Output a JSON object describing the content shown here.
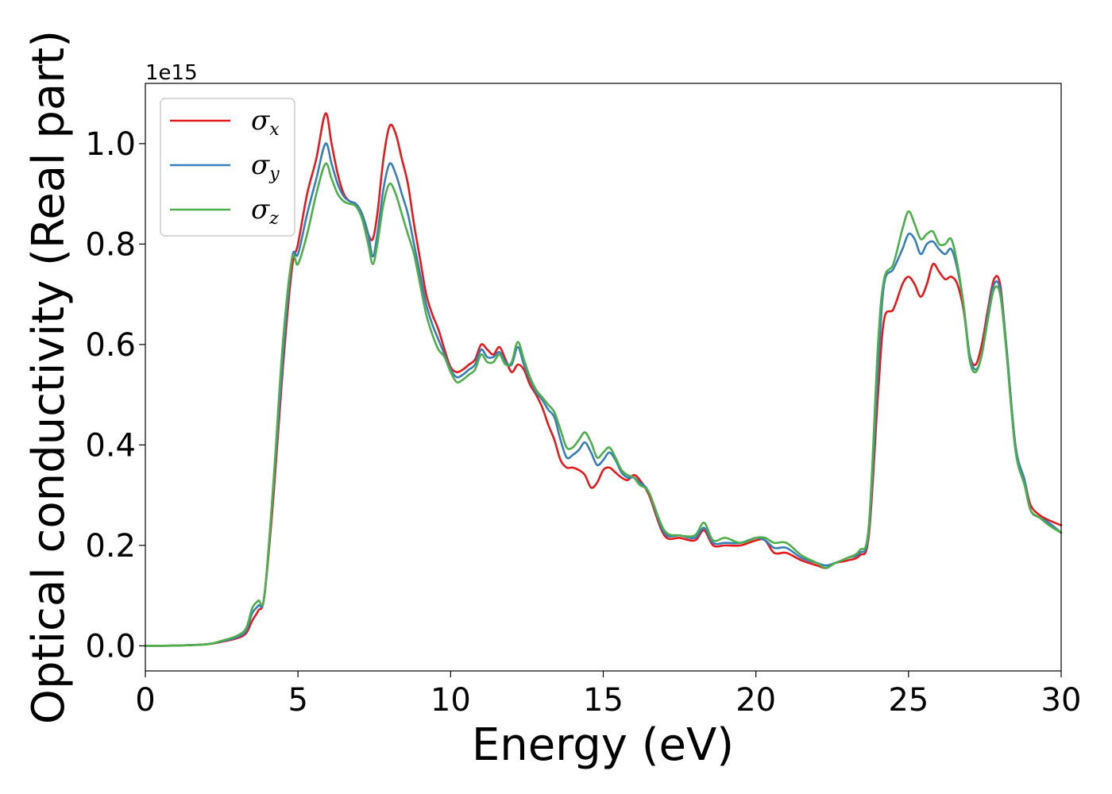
{
  "chart_data": {
    "type": "line",
    "title": "",
    "xlabel": "Energy (eV)",
    "ylabel": "Optical conductivity (Real part)",
    "y_offset_label": "1e15",
    "xlim": [
      0,
      30
    ],
    "ylim": [
      -0.05,
      1.12
    ],
    "xticks": [
      0,
      5,
      10,
      15,
      20,
      25,
      30
    ],
    "yticks": [
      0.0,
      0.2,
      0.4,
      0.6,
      0.8,
      1.0
    ],
    "ytick_labels": [
      "0.0",
      "0.2",
      "0.4",
      "0.6",
      "0.8",
      "1.0"
    ],
    "grid": false,
    "legend_position": "top-left",
    "series": [
      {
        "name": "σx",
        "symbol": "σ",
        "subscript": "x",
        "color": "#e41a1c",
        "x": [
          0,
          1,
          2,
          2.5,
          3,
          3.3,
          3.5,
          3.7,
          3.9,
          4.2,
          4.5,
          4.8,
          5.0,
          5.3,
          5.6,
          5.9,
          6.1,
          6.3,
          6.5,
          6.7,
          6.9,
          7.1,
          7.3,
          7.45,
          7.6,
          7.8,
          8.0,
          8.2,
          8.4,
          8.6,
          8.8,
          9.0,
          9.2,
          9.4,
          9.6,
          9.8,
          10.0,
          10.2,
          10.4,
          10.6,
          10.8,
          11.0,
          11.2,
          11.4,
          11.6,
          11.8,
          12.0,
          12.2,
          12.4,
          12.6,
          12.8,
          13.0,
          13.2,
          13.4,
          13.6,
          13.8,
          14.0,
          14.2,
          14.4,
          14.6,
          14.8,
          15.0,
          15.2,
          15.4,
          15.6,
          15.8,
          16.0,
          16.2,
          16.5,
          17.0,
          17.5,
          18.0,
          18.3,
          18.6,
          19.0,
          19.5,
          20.0,
          20.3,
          20.6,
          21.0,
          21.5,
          22.0,
          22.3,
          22.6,
          23.0,
          23.4,
          23.7,
          24.0,
          24.2,
          24.5,
          24.8,
          25.0,
          25.2,
          25.4,
          25.6,
          25.8,
          26.0,
          26.2,
          26.4,
          26.6,
          26.8,
          27.0,
          27.2,
          27.4,
          27.6,
          27.8,
          28.0,
          28.2,
          28.5,
          28.8,
          29.0,
          29.3,
          29.6,
          30.0
        ],
        "y": [
          0,
          0.0005,
          0.003,
          0.008,
          0.015,
          0.025,
          0.05,
          0.07,
          0.1,
          0.3,
          0.55,
          0.75,
          0.8,
          0.9,
          0.97,
          1.06,
          1.0,
          0.94,
          0.9,
          0.885,
          0.88,
          0.86,
          0.82,
          0.81,
          0.86,
          0.97,
          1.035,
          1.02,
          0.97,
          0.92,
          0.84,
          0.77,
          0.7,
          0.66,
          0.63,
          0.59,
          0.555,
          0.545,
          0.55,
          0.56,
          0.57,
          0.6,
          0.59,
          0.58,
          0.595,
          0.57,
          0.545,
          0.56,
          0.55,
          0.52,
          0.5,
          0.475,
          0.44,
          0.41,
          0.37,
          0.355,
          0.355,
          0.35,
          0.34,
          0.315,
          0.325,
          0.35,
          0.355,
          0.345,
          0.335,
          0.33,
          0.34,
          0.33,
          0.3,
          0.22,
          0.215,
          0.21,
          0.23,
          0.2,
          0.2,
          0.2,
          0.21,
          0.21,
          0.185,
          0.185,
          0.17,
          0.16,
          0.155,
          0.165,
          0.17,
          0.18,
          0.22,
          0.5,
          0.65,
          0.67,
          0.72,
          0.735,
          0.72,
          0.695,
          0.72,
          0.76,
          0.745,
          0.73,
          0.735,
          0.72,
          0.67,
          0.58,
          0.56,
          0.6,
          0.67,
          0.73,
          0.72,
          0.6,
          0.4,
          0.33,
          0.28,
          0.26,
          0.25,
          0.24
        ]
      },
      {
        "name": "σy",
        "symbol": "σ",
        "subscript": "y",
        "color": "#377eb8",
        "x": [
          0,
          1,
          2,
          2.5,
          3,
          3.3,
          3.5,
          3.7,
          3.9,
          4.2,
          4.5,
          4.8,
          5.0,
          5.3,
          5.6,
          5.9,
          6.1,
          6.3,
          6.5,
          6.7,
          6.9,
          7.1,
          7.3,
          7.45,
          7.6,
          7.8,
          8.0,
          8.2,
          8.4,
          8.6,
          8.8,
          9.0,
          9.2,
          9.4,
          9.6,
          9.8,
          10.0,
          10.2,
          10.4,
          10.6,
          10.8,
          11.0,
          11.2,
          11.4,
          11.6,
          11.8,
          12.0,
          12.2,
          12.4,
          12.6,
          12.8,
          13.0,
          13.2,
          13.4,
          13.6,
          13.8,
          14.0,
          14.2,
          14.4,
          14.6,
          14.8,
          15.0,
          15.2,
          15.4,
          15.6,
          15.8,
          16.0,
          16.2,
          16.5,
          17.0,
          17.5,
          18.0,
          18.3,
          18.6,
          19.0,
          19.5,
          20.0,
          20.3,
          20.6,
          21.0,
          21.5,
          22.0,
          22.3,
          22.6,
          23.0,
          23.4,
          23.7,
          24.0,
          24.2,
          24.5,
          24.8,
          25.0,
          25.2,
          25.4,
          25.6,
          25.8,
          26.0,
          26.2,
          26.4,
          26.6,
          26.8,
          27.0,
          27.2,
          27.4,
          27.6,
          27.8,
          28.0,
          28.2,
          28.5,
          28.8,
          29.0,
          29.3,
          29.6,
          30.0
        ],
        "y": [
          0,
          0.0005,
          0.003,
          0.009,
          0.017,
          0.03,
          0.065,
          0.08,
          0.1,
          0.32,
          0.57,
          0.77,
          0.78,
          0.86,
          0.93,
          1.0,
          0.96,
          0.92,
          0.895,
          0.885,
          0.88,
          0.86,
          0.82,
          0.775,
          0.82,
          0.91,
          0.96,
          0.94,
          0.9,
          0.86,
          0.8,
          0.74,
          0.68,
          0.64,
          0.61,
          0.58,
          0.55,
          0.535,
          0.54,
          0.55,
          0.56,
          0.59,
          0.575,
          0.575,
          0.585,
          0.565,
          0.56,
          0.595,
          0.56,
          0.53,
          0.505,
          0.49,
          0.47,
          0.455,
          0.41,
          0.375,
          0.38,
          0.39,
          0.405,
          0.385,
          0.36,
          0.37,
          0.385,
          0.37,
          0.345,
          0.335,
          0.335,
          0.325,
          0.305,
          0.225,
          0.22,
          0.215,
          0.235,
          0.205,
          0.205,
          0.205,
          0.215,
          0.21,
          0.195,
          0.195,
          0.175,
          0.165,
          0.16,
          0.165,
          0.175,
          0.185,
          0.23,
          0.55,
          0.72,
          0.75,
          0.79,
          0.82,
          0.81,
          0.78,
          0.8,
          0.805,
          0.79,
          0.78,
          0.79,
          0.75,
          0.68,
          0.58,
          0.55,
          0.58,
          0.66,
          0.72,
          0.71,
          0.6,
          0.4,
          0.33,
          0.27,
          0.255,
          0.245,
          0.225
        ]
      },
      {
        "name": "σz",
        "symbol": "σ",
        "subscript": "z",
        "color": "#4daf4a",
        "x": [
          0,
          1,
          2,
          2.5,
          3,
          3.3,
          3.5,
          3.7,
          3.9,
          4.2,
          4.5,
          4.8,
          5.0,
          5.3,
          5.6,
          5.9,
          6.1,
          6.3,
          6.5,
          6.7,
          6.9,
          7.1,
          7.3,
          7.45,
          7.6,
          7.8,
          8.0,
          8.2,
          8.4,
          8.6,
          8.8,
          9.0,
          9.2,
          9.4,
          9.6,
          9.8,
          10.0,
          10.2,
          10.4,
          10.6,
          10.8,
          11.0,
          11.2,
          11.4,
          11.6,
          11.8,
          12.0,
          12.2,
          12.4,
          12.6,
          12.8,
          13.0,
          13.2,
          13.4,
          13.6,
          13.8,
          14.0,
          14.2,
          14.4,
          14.6,
          14.8,
          15.0,
          15.2,
          15.4,
          15.6,
          15.8,
          16.0,
          16.2,
          16.5,
          17.0,
          17.5,
          18.0,
          18.3,
          18.6,
          19.0,
          19.5,
          20.0,
          20.3,
          20.6,
          21.0,
          21.5,
          22.0,
          22.3,
          22.6,
          23.0,
          23.4,
          23.7,
          24.0,
          24.2,
          24.5,
          24.8,
          25.0,
          25.2,
          25.4,
          25.6,
          25.8,
          26.0,
          26.2,
          26.4,
          26.6,
          26.8,
          27.0,
          27.2,
          27.4,
          27.6,
          27.8,
          28.0,
          28.2,
          28.5,
          28.8,
          29.0,
          29.3,
          29.6,
          30.0
        ],
        "y": [
          0,
          0.0005,
          0.003,
          0.01,
          0.02,
          0.035,
          0.075,
          0.09,
          0.1,
          0.33,
          0.6,
          0.77,
          0.76,
          0.82,
          0.9,
          0.96,
          0.93,
          0.9,
          0.885,
          0.88,
          0.875,
          0.85,
          0.8,
          0.76,
          0.8,
          0.88,
          0.92,
          0.9,
          0.86,
          0.82,
          0.78,
          0.72,
          0.66,
          0.62,
          0.59,
          0.575,
          0.545,
          0.525,
          0.53,
          0.54,
          0.55,
          0.58,
          0.565,
          0.565,
          0.58,
          0.56,
          0.565,
          0.605,
          0.57,
          0.535,
          0.51,
          0.495,
          0.48,
          0.465,
          0.43,
          0.395,
          0.395,
          0.41,
          0.425,
          0.405,
          0.375,
          0.385,
          0.395,
          0.375,
          0.35,
          0.34,
          0.335,
          0.32,
          0.305,
          0.23,
          0.22,
          0.22,
          0.245,
          0.21,
          0.215,
          0.205,
          0.215,
          0.215,
          0.205,
          0.205,
          0.18,
          0.165,
          0.155,
          0.165,
          0.175,
          0.19,
          0.24,
          0.6,
          0.73,
          0.76,
          0.83,
          0.865,
          0.84,
          0.81,
          0.82,
          0.825,
          0.8,
          0.8,
          0.81,
          0.76,
          0.68,
          0.57,
          0.545,
          0.58,
          0.65,
          0.71,
          0.7,
          0.59,
          0.39,
          0.32,
          0.27,
          0.255,
          0.24,
          0.225
        ]
      }
    ]
  }
}
